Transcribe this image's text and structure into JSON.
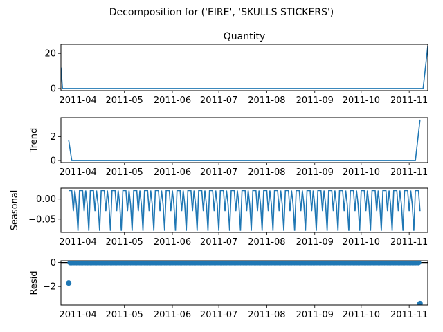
{
  "suptitle": "Decomposition for ('EIRE', 'SKULLS  STICKERS')",
  "date_ticks": [
    "2011-04",
    "2011-05",
    "2011-06",
    "2011-07",
    "2011-08",
    "2011-09",
    "2011-10",
    "2011-11"
  ],
  "colors": {
    "line": "#1f77b4",
    "axis": "#000000"
  },
  "chart_data": [
    {
      "type": "line",
      "title": "Quantity",
      "ylabel": "",
      "xlim": [
        "2011-03-21",
        "2011-11-13"
      ],
      "ylim": [
        -1.2,
        25.2
      ],
      "yticks": [
        0,
        20
      ],
      "ytick_labels": [
        "0",
        "20"
      ],
      "x": [
        "2011-03-21",
        "2011-03-22",
        "2011-11-10",
        "2011-11-13"
      ],
      "values": [
        12,
        0,
        0,
        24
      ]
    },
    {
      "type": "line",
      "title": "",
      "ylabel": "Trend",
      "xlim": [
        "2011-03-21",
        "2011-11-13"
      ],
      "ylim": [
        -0.17,
        3.6
      ],
      "yticks": [
        0,
        2
      ],
      "ytick_labels": [
        "0",
        "2"
      ],
      "x": [
        "2011-03-26",
        "2011-03-28",
        "2011-11-05",
        "2011-11-08"
      ],
      "values": [
        1.71,
        0,
        0,
        3.43
      ]
    },
    {
      "type": "line",
      "title": "",
      "ylabel": "Seasonal",
      "xlim": [
        "2011-03-21",
        "2011-11-13"
      ],
      "ylim": [
        -0.083,
        0.027
      ],
      "yticks": [
        0,
        -0.05
      ],
      "ytick_labels": [
        "0.00",
        "−0.05"
      ],
      "period_days": 7,
      "start": "2011-03-26",
      "end": "2011-11-08",
      "weekly_pattern": [
        0.021,
        0.021,
        0.021,
        -0.03,
        0.021,
        -0.014,
        -0.079
      ]
    },
    {
      "type": "scatter",
      "title": "",
      "ylabel": "Resid",
      "xlim": [
        "2011-03-21",
        "2011-11-13"
      ],
      "ylim": [
        -3.55,
        0.15
      ],
      "yticks": [
        0,
        -2
      ],
      "ytick_labels": [
        "0",
        "−2"
      ],
      "zero_line": true,
      "start": "2011-03-26",
      "end": "2011-11-08",
      "baseline": 0,
      "outliers": [
        {
          "x": "2011-03-26",
          "y": -1.71
        },
        {
          "x": "2011-11-08",
          "y": -3.43
        }
      ]
    }
  ]
}
